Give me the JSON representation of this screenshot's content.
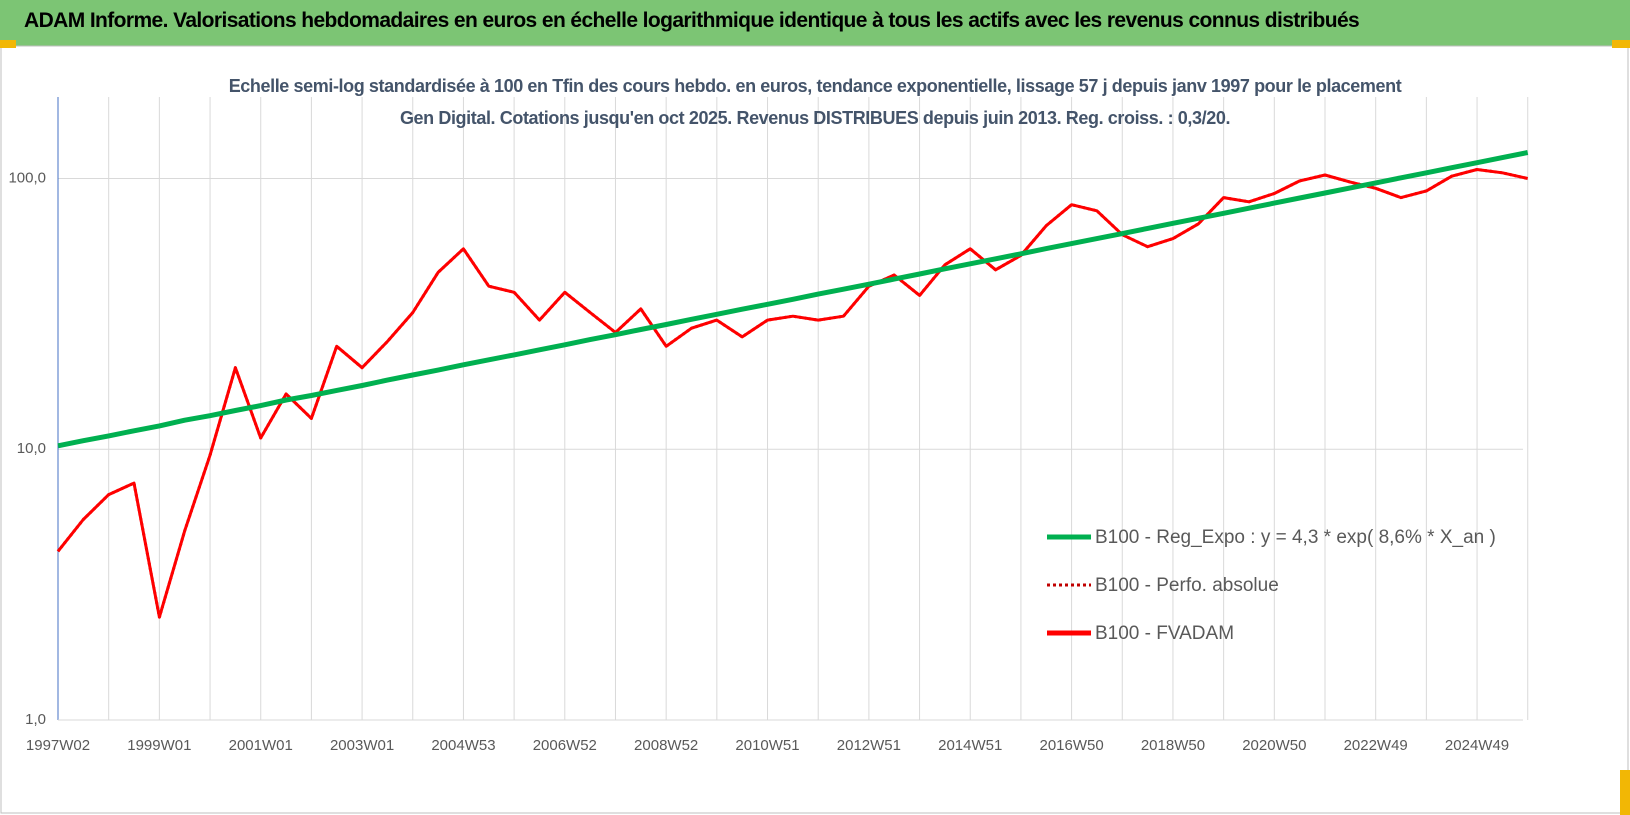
{
  "header": {
    "title": "ADAM Informe. Valorisations hebdomadaires en euros en échelle logarithmique identique à tous les actifs avec les revenus connus distribués"
  },
  "chart_data": {
    "type": "line",
    "title": "Echelle semi-log standardisée à 100 en Tfin des cours hebdo. en euros, tendance exponentielle, lissage 57 j depuis janv 1997 pour le placement Gen Digital. Cotations jusqu'en oct 2025. Revenus DISTRIBUES depuis juin 2013. Reg. croiss. : 0,3/20.",
    "log_y": true,
    "grid": true,
    "legend": "right",
    "ylim": [
      1,
      200
    ],
    "yticks": [
      {
        "value": 1,
        "label": "1,0"
      },
      {
        "value": 10,
        "label": "10,0"
      },
      {
        "value": 100,
        "label": "100,0"
      }
    ],
    "categories": [
      "1997W02",
      null,
      null,
      null,
      "1999W01",
      null,
      null,
      null,
      "2001W01",
      null,
      null,
      null,
      "2003W01",
      null,
      null,
      null,
      "2004W53",
      null,
      null,
      null,
      "2006W52",
      null,
      null,
      null,
      "2008W52",
      null,
      null,
      null,
      "2010W51",
      null,
      null,
      null,
      "2012W51",
      null,
      null,
      null,
      "2014W51",
      null,
      null,
      null,
      "2016W50",
      null,
      null,
      null,
      "2018W50",
      null,
      null,
      null,
      "2020W50",
      null,
      null,
      null,
      "2022W49",
      null,
      null,
      null,
      "2024W49",
      null,
      null
    ],
    "series": [
      {
        "name": "B100 - Reg_Expo : y = 4,3 * exp( 8,6% *  X_an )",
        "color": "#00b050",
        "style": "solid",
        "width": 5,
        "values": [
          10.3,
          10.75,
          11.2,
          11.7,
          12.2,
          12.8,
          13.3,
          13.9,
          14.5,
          15.2,
          15.8,
          16.5,
          17.2,
          18.0,
          18.8,
          19.6,
          20.5,
          21.4,
          22.3,
          23.3,
          24.3,
          25.4,
          26.5,
          27.7,
          28.9,
          30.2,
          31.5,
          32.9,
          34.3,
          35.8,
          37.4,
          39.0,
          40.7,
          42.5,
          44.4,
          46.4,
          48.4,
          50.5,
          52.7,
          55.1,
          57.5,
          60.0,
          62.6,
          65.4,
          68.3,
          71.3,
          74.4,
          77.7,
          81.1,
          84.7,
          88.4,
          92.3,
          96.3,
          100.6,
          105,
          109.6,
          114.4,
          119.5,
          124.7
        ]
      },
      {
        "name": "B100 - Perfo. absolue",
        "color": "#c00000",
        "style": "dotted",
        "width": 3,
        "values": [
          4.2,
          5.5,
          6.8,
          7.5,
          2.4,
          5.0,
          9.5,
          20,
          11,
          16,
          13,
          24,
          20,
          25,
          32,
          45,
          55,
          40,
          38,
          30,
          38,
          32,
          27,
          33,
          24,
          28,
          30,
          26,
          30,
          31,
          30,
          31,
          40,
          44,
          37,
          48,
          55,
          46,
          52,
          67,
          80,
          76,
          62,
          56,
          60,
          68,
          85,
          82,
          88,
          98,
          103,
          97,
          92,
          85,
          90,
          102,
          108,
          105,
          100
        ]
      },
      {
        "name": "B100 - FVADAM",
        "color": "#ff0000",
        "style": "solid",
        "width": 3,
        "values": [
          4.2,
          5.5,
          6.8,
          7.5,
          2.4,
          5.0,
          9.5,
          20,
          11,
          16,
          13,
          24,
          20,
          25,
          32,
          45,
          55,
          40,
          38,
          30,
          38,
          32,
          27,
          33,
          24,
          28,
          30,
          26,
          30,
          31,
          30,
          31,
          40,
          44,
          37,
          48,
          55,
          46,
          52,
          67,
          80,
          76,
          62,
          56,
          60,
          68,
          85,
          82,
          88,
          98,
          103,
          97,
          92,
          85,
          90,
          102,
          108,
          105,
          100
        ]
      }
    ]
  }
}
